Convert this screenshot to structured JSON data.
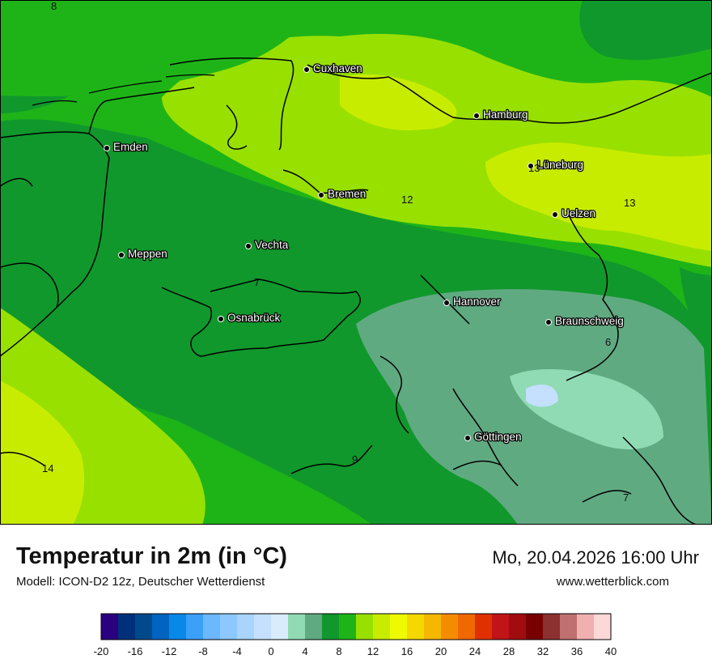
{
  "title": "Temperatur in 2m (in °C)",
  "subtitle": "Modell: ICON-D2 12z, Deutscher Wetterdienst",
  "datetime": "Mo, 20.04.2026 16:00 Uhr",
  "website": "www.wetterblick.com",
  "cities": [
    {
      "name": "Cuxhaven"
    },
    {
      "name": "Hamburg"
    },
    {
      "name": "Emden"
    },
    {
      "name": "Lüneburg"
    },
    {
      "name": "Bremen"
    },
    {
      "name": "Uelzen"
    },
    {
      "name": "Meppen"
    },
    {
      "name": "Vechta"
    },
    {
      "name": "Hannover"
    },
    {
      "name": "Osnabrück"
    },
    {
      "name": "Braunschweig"
    },
    {
      "name": "Göttingen"
    }
  ],
  "iso_labels": [
    "8",
    "12",
    "13",
    "13",
    "7",
    "6",
    "9",
    "14",
    "7"
  ],
  "legend": {
    "colors": [
      "#2a0080",
      "#00307a",
      "#004a8c",
      "#0064c0",
      "#0a88e8",
      "#3aa0f8",
      "#6cb8fc",
      "#8cc8fe",
      "#a8d4fe",
      "#c4e0fe",
      "#d8ecfe",
      "#90dab4",
      "#60aa82",
      "#10982c",
      "#1eb418",
      "#98e000",
      "#c8ec00",
      "#eefa00",
      "#f4d800",
      "#f4b800",
      "#f48c00",
      "#f06800",
      "#e03000",
      "#c01418",
      "#a00c10",
      "#780000",
      "#8c3030",
      "#c07070",
      "#f0b0b0",
      "#fcd8d8"
    ],
    "ticks": [
      "-20",
      "-16",
      "-12",
      "-8",
      "-4",
      "0",
      "4",
      "8",
      "12",
      "16",
      "20",
      "24",
      "28",
      "32",
      "36",
      "40"
    ]
  }
}
